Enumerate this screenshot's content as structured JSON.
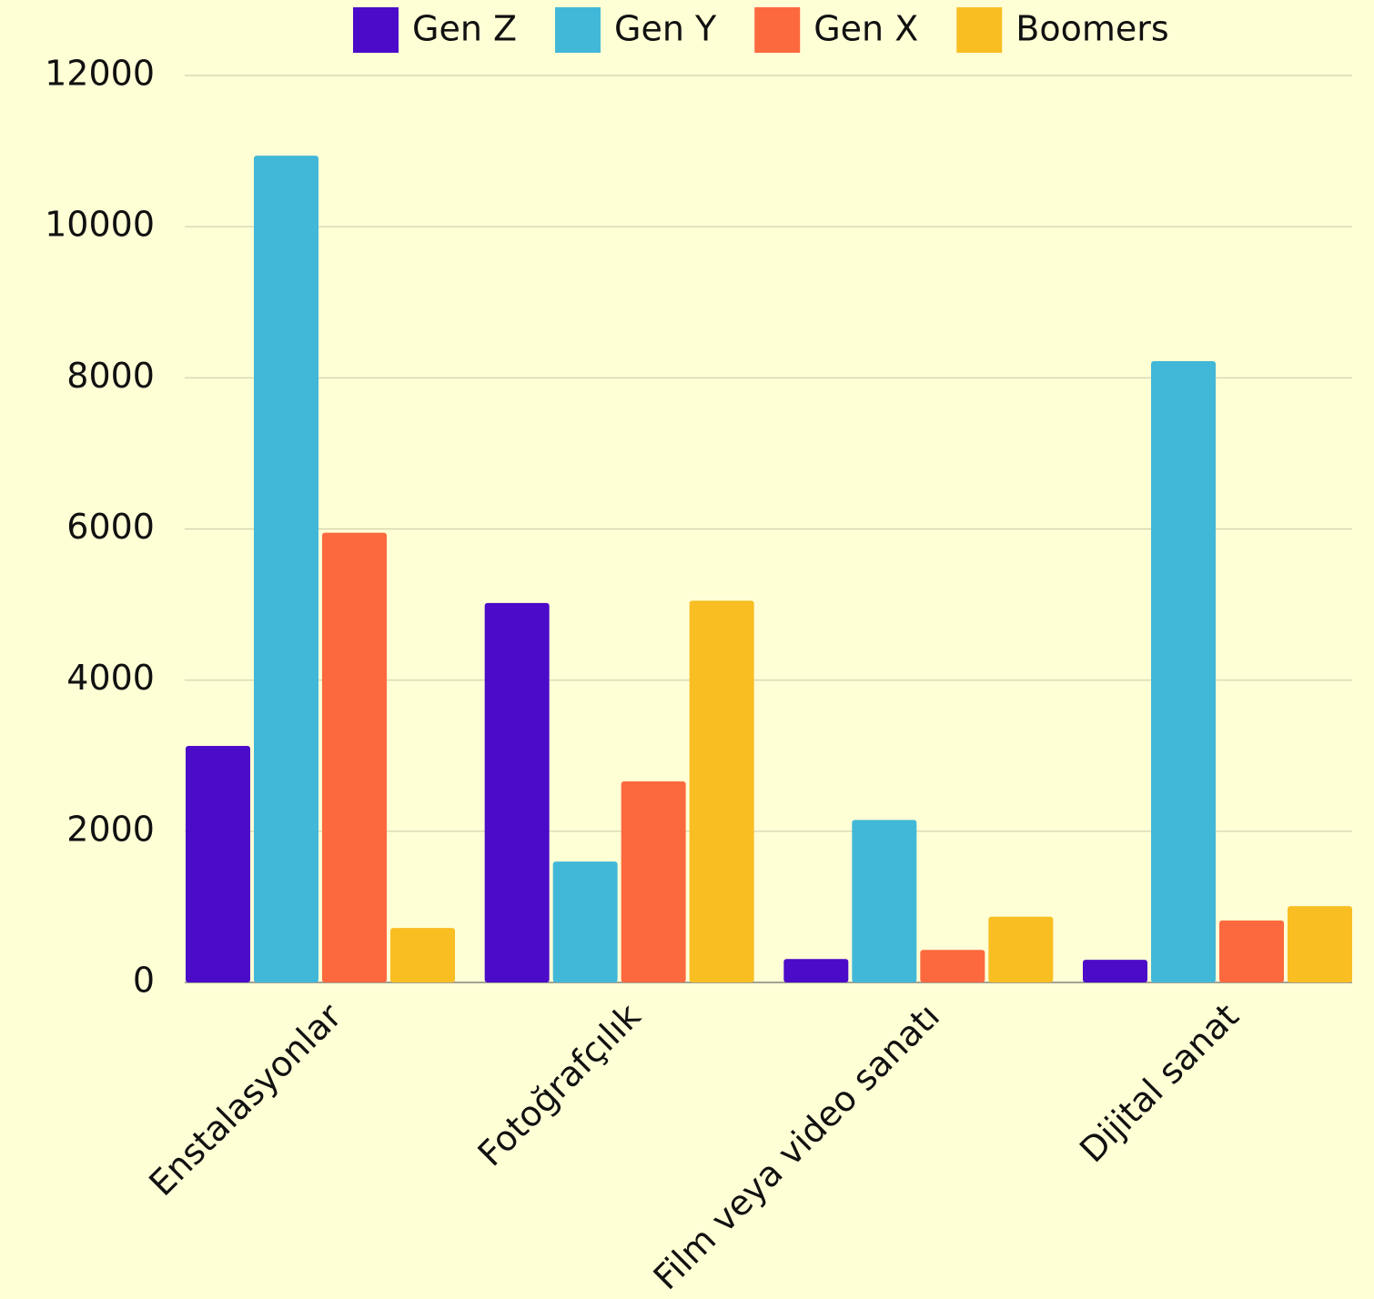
{
  "chart_data": {
    "type": "bar",
    "categories": [
      "Enstalasyonlar",
      "Fotoğrafçılık",
      "Film veya video sanatı",
      "Dijital sanat"
    ],
    "series": [
      {
        "name": "Gen Z",
        "color": "#4b0bc8",
        "values": [
          3130,
          5020,
          310,
          300
        ]
      },
      {
        "name": "Gen Y",
        "color": "#42b8d8",
        "values": [
          10940,
          1600,
          2150,
          8220
        ]
      },
      {
        "name": "Gen X",
        "color": "#fd693e",
        "values": [
          5950,
          2660,
          430,
          820
        ]
      },
      {
        "name": "Boomers",
        "color": "#f8be22",
        "values": [
          720,
          5050,
          870,
          1010
        ]
      }
    ],
    "ylim": [
      0,
      12000
    ],
    "yticks": [
      0,
      2000,
      4000,
      6000,
      8000,
      10000,
      12000
    ],
    "grid": true,
    "legend": "top"
  }
}
